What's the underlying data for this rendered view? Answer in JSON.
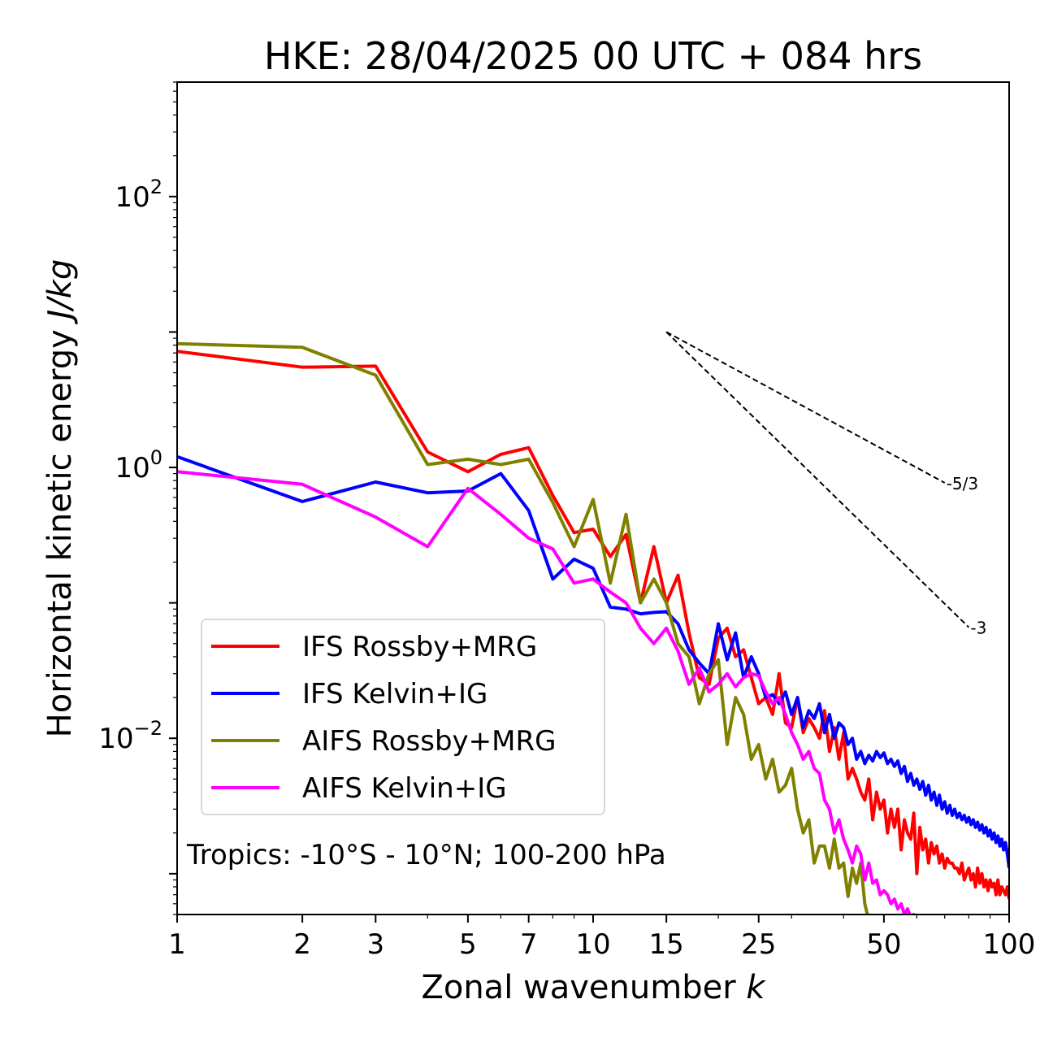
{
  "title": "HKE: 28/04/2025 00 UTC + 084 hrs",
  "xlabel": "Zonal wavenumber",
  "xlabel_var": "k",
  "ylabel": "Horizontal kinetic energy",
  "ylabel_unit": "J/kg",
  "annotation": "Tropics: -10°S - 10°N; 100-200 hPa",
  "slopes": [
    {
      "label": "-5/3",
      "exponent": -1.6667
    },
    {
      "label": "-3",
      "exponent": -3
    }
  ],
  "chart_data": {
    "type": "line",
    "xscale": "log",
    "yscale": "log",
    "xlim": [
      1,
      100
    ],
    "ylim": [
      0.0005,
      700
    ],
    "xticks": [
      1,
      2,
      3,
      5,
      7,
      10,
      15,
      25,
      50,
      100
    ],
    "xtick_labels": [
      "1",
      "2",
      "3",
      "5",
      "7",
      "10",
      "15",
      "25",
      "50",
      "100"
    ],
    "yticks": [
      0.01,
      1,
      100
    ],
    "ytick_labels": [
      {
        "base": "10",
        "exp": "−2"
      },
      {
        "base": "10",
        "exp": "0"
      },
      {
        "base": "10",
        "exp": "2"
      }
    ],
    "reference_lines": {
      "origin": {
        "x": 15,
        "y": 10
      },
      "ends": [
        {
          "x": 70,
          "y": 0.77
        },
        {
          "x": 80,
          "y": 0.066
        }
      ]
    },
    "legend": {
      "loc": "lower left"
    },
    "series": [
      {
        "name": "IFS Rossby+MRG",
        "color": "#ff0000",
        "x": [
          1,
          2,
          3,
          4,
          5,
          6,
          7,
          8,
          9,
          10,
          11,
          12,
          13,
          14,
          15,
          16,
          17,
          18,
          19,
          20,
          21,
          22,
          23,
          24,
          25,
          26,
          27,
          28,
          29,
          30,
          31,
          32,
          33,
          34,
          35,
          36,
          37,
          38,
          39,
          40,
          41,
          42,
          43,
          44,
          45,
          46,
          47,
          48,
          49,
          50,
          51,
          52,
          53,
          54,
          55,
          56,
          57,
          58,
          59,
          60,
          61,
          62,
          63,
          64,
          65,
          66,
          67,
          68,
          69,
          70,
          71,
          72,
          73,
          74,
          75,
          76,
          77,
          78,
          79,
          80,
          81,
          82,
          83,
          84,
          85,
          86,
          87,
          88,
          89,
          90,
          91,
          92,
          93,
          94,
          95,
          96,
          97,
          98,
          99,
          100
        ],
        "y": [
          7.2,
          5.5,
          5.6,
          1.3,
          0.93,
          1.25,
          1.4,
          0.62,
          0.33,
          0.35,
          0.22,
          0.32,
          0.1,
          0.26,
          0.1,
          0.16,
          0.06,
          0.028,
          0.025,
          0.055,
          0.065,
          0.04,
          0.045,
          0.028,
          0.018,
          0.02,
          0.015,
          0.03,
          0.013,
          0.012,
          0.02,
          0.011,
          0.014,
          0.012,
          0.01,
          0.016,
          0.008,
          0.012,
          0.007,
          0.011,
          0.005,
          0.006,
          0.005,
          0.004,
          0.0035,
          0.005,
          0.0025,
          0.004,
          0.003,
          0.0035,
          0.002,
          0.003,
          0.0022,
          0.003,
          0.0015,
          0.0025,
          0.002,
          0.0018,
          0.0028,
          0.001,
          0.0022,
          0.0015,
          0.0018,
          0.0012,
          0.0017,
          0.0014,
          0.0016,
          0.0012,
          0.0014,
          0.0011,
          0.0013,
          0.0012,
          0.0012,
          0.0011,
          0.0011,
          0.001,
          0.0012,
          0.0009,
          0.001,
          0.0011,
          0.0009,
          0.001,
          0.0008,
          0.0011,
          0.00085,
          0.001,
          0.0008,
          0.0009,
          0.00075,
          0.0009,
          0.0008,
          0.00085,
          0.0007,
          0.0009,
          0.0007,
          0.0008,
          0.00075,
          0.0007,
          0.0008,
          0.00065
        ]
      },
      {
        "name": "IFS Kelvin+IG",
        "color": "#0000ff",
        "x": [
          1,
          2,
          3,
          4,
          5,
          6,
          7,
          8,
          9,
          10,
          11,
          12,
          13,
          14,
          15,
          16,
          17,
          18,
          19,
          20,
          21,
          22,
          23,
          24,
          25,
          26,
          27,
          28,
          29,
          30,
          31,
          32,
          33,
          34,
          35,
          36,
          37,
          38,
          39,
          40,
          41,
          42,
          43,
          44,
          45,
          46,
          47,
          48,
          49,
          50,
          51,
          52,
          53,
          54,
          55,
          56,
          57,
          58,
          59,
          60,
          61,
          62,
          63,
          64,
          65,
          66,
          67,
          68,
          69,
          70,
          71,
          72,
          73,
          74,
          75,
          76,
          77,
          78,
          79,
          80,
          81,
          82,
          83,
          84,
          85,
          86,
          87,
          88,
          89,
          90,
          91,
          92,
          93,
          94,
          95,
          96,
          97,
          98,
          99,
          100
        ],
        "y": [
          1.2,
          0.56,
          0.78,
          0.65,
          0.67,
          0.9,
          0.48,
          0.15,
          0.21,
          0.18,
          0.093,
          0.09,
          0.083,
          0.085,
          0.086,
          0.07,
          0.045,
          0.036,
          0.03,
          0.07,
          0.038,
          0.06,
          0.028,
          0.04,
          0.03,
          0.02,
          0.021,
          0.018,
          0.022,
          0.015,
          0.02,
          0.012,
          0.016,
          0.014,
          0.018,
          0.011,
          0.015,
          0.01,
          0.013,
          0.012,
          0.009,
          0.01,
          0.007,
          0.008,
          0.0065,
          0.0075,
          0.0068,
          0.008,
          0.0072,
          0.0078,
          0.0065,
          0.007,
          0.0062,
          0.0068,
          0.0055,
          0.0062,
          0.0048,
          0.0055,
          0.0045,
          0.005,
          0.0042,
          0.0048,
          0.0038,
          0.0045,
          0.0035,
          0.004,
          0.0032,
          0.0038,
          0.003,
          0.0034,
          0.0028,
          0.0032,
          0.0027,
          0.003,
          0.0026,
          0.0028,
          0.0025,
          0.0027,
          0.0024,
          0.0026,
          0.0023,
          0.0025,
          0.0022,
          0.0024,
          0.0021,
          0.0023,
          0.002,
          0.0022,
          0.0019,
          0.0021,
          0.0018,
          0.002,
          0.0017,
          0.0019,
          0.0016,
          0.0018,
          0.0015,
          0.0017,
          0.0014,
          0.0011
        ]
      },
      {
        "name": "AIFS Rossby+MRG",
        "color": "#808000",
        "x": [
          1,
          2,
          3,
          4,
          5,
          6,
          7,
          8,
          9,
          10,
          11,
          12,
          13,
          14,
          15,
          16,
          17,
          18,
          19,
          20,
          21,
          22,
          23,
          24,
          25,
          26,
          27,
          28,
          29,
          30,
          31,
          32,
          33,
          34,
          35,
          36,
          37,
          38,
          39,
          40,
          41,
          42,
          43,
          44,
          45,
          46,
          47,
          48,
          49
        ],
        "y": [
          8.2,
          7.7,
          4.8,
          1.05,
          1.15,
          1.05,
          1.15,
          0.55,
          0.26,
          0.58,
          0.14,
          0.45,
          0.1,
          0.15,
          0.1,
          0.05,
          0.04,
          0.018,
          0.03,
          0.038,
          0.009,
          0.02,
          0.015,
          0.007,
          0.009,
          0.005,
          0.007,
          0.004,
          0.0045,
          0.006,
          0.003,
          0.002,
          0.0025,
          0.0012,
          0.0016,
          0.0016,
          0.0011,
          0.0018,
          0.0011,
          0.0012,
          0.00068,
          0.0011,
          0.00085,
          0.0012,
          0.0006,
          0.00045,
          0.0004,
          0.0003,
          0.00025
        ]
      },
      {
        "name": "AIFS Kelvin+IG",
        "color": "#ff00ff",
        "x": [
          1,
          2,
          3,
          4,
          5,
          6,
          7,
          8,
          9,
          10,
          11,
          12,
          13,
          14,
          15,
          16,
          17,
          18,
          19,
          20,
          21,
          22,
          23,
          24,
          25,
          26,
          27,
          28,
          29,
          30,
          31,
          32,
          33,
          34,
          35,
          36,
          37,
          38,
          39,
          40,
          41,
          42,
          43,
          44,
          45,
          46,
          47,
          48,
          49,
          50,
          51,
          52,
          53,
          54,
          55,
          56,
          57,
          58,
          59,
          60
        ],
        "y": [
          0.93,
          0.75,
          0.43,
          0.26,
          0.7,
          0.45,
          0.3,
          0.25,
          0.14,
          0.15,
          0.12,
          0.1,
          0.065,
          0.05,
          0.065,
          0.044,
          0.025,
          0.033,
          0.022,
          0.025,
          0.03,
          0.024,
          0.028,
          0.03,
          0.029,
          0.022,
          0.018,
          0.02,
          0.015,
          0.011,
          0.009,
          0.007,
          0.008,
          0.006,
          0.0055,
          0.0035,
          0.003,
          0.002,
          0.0025,
          0.0018,
          0.0015,
          0.0012,
          0.0016,
          0.0014,
          0.0009,
          0.0012,
          0.00085,
          0.0009,
          0.0007,
          0.00075,
          0.0007,
          0.0006,
          0.00065,
          0.00055,
          0.0006,
          0.0005,
          0.00055,
          0.00048,
          0.0005,
          0.00045
        ]
      }
    ]
  }
}
